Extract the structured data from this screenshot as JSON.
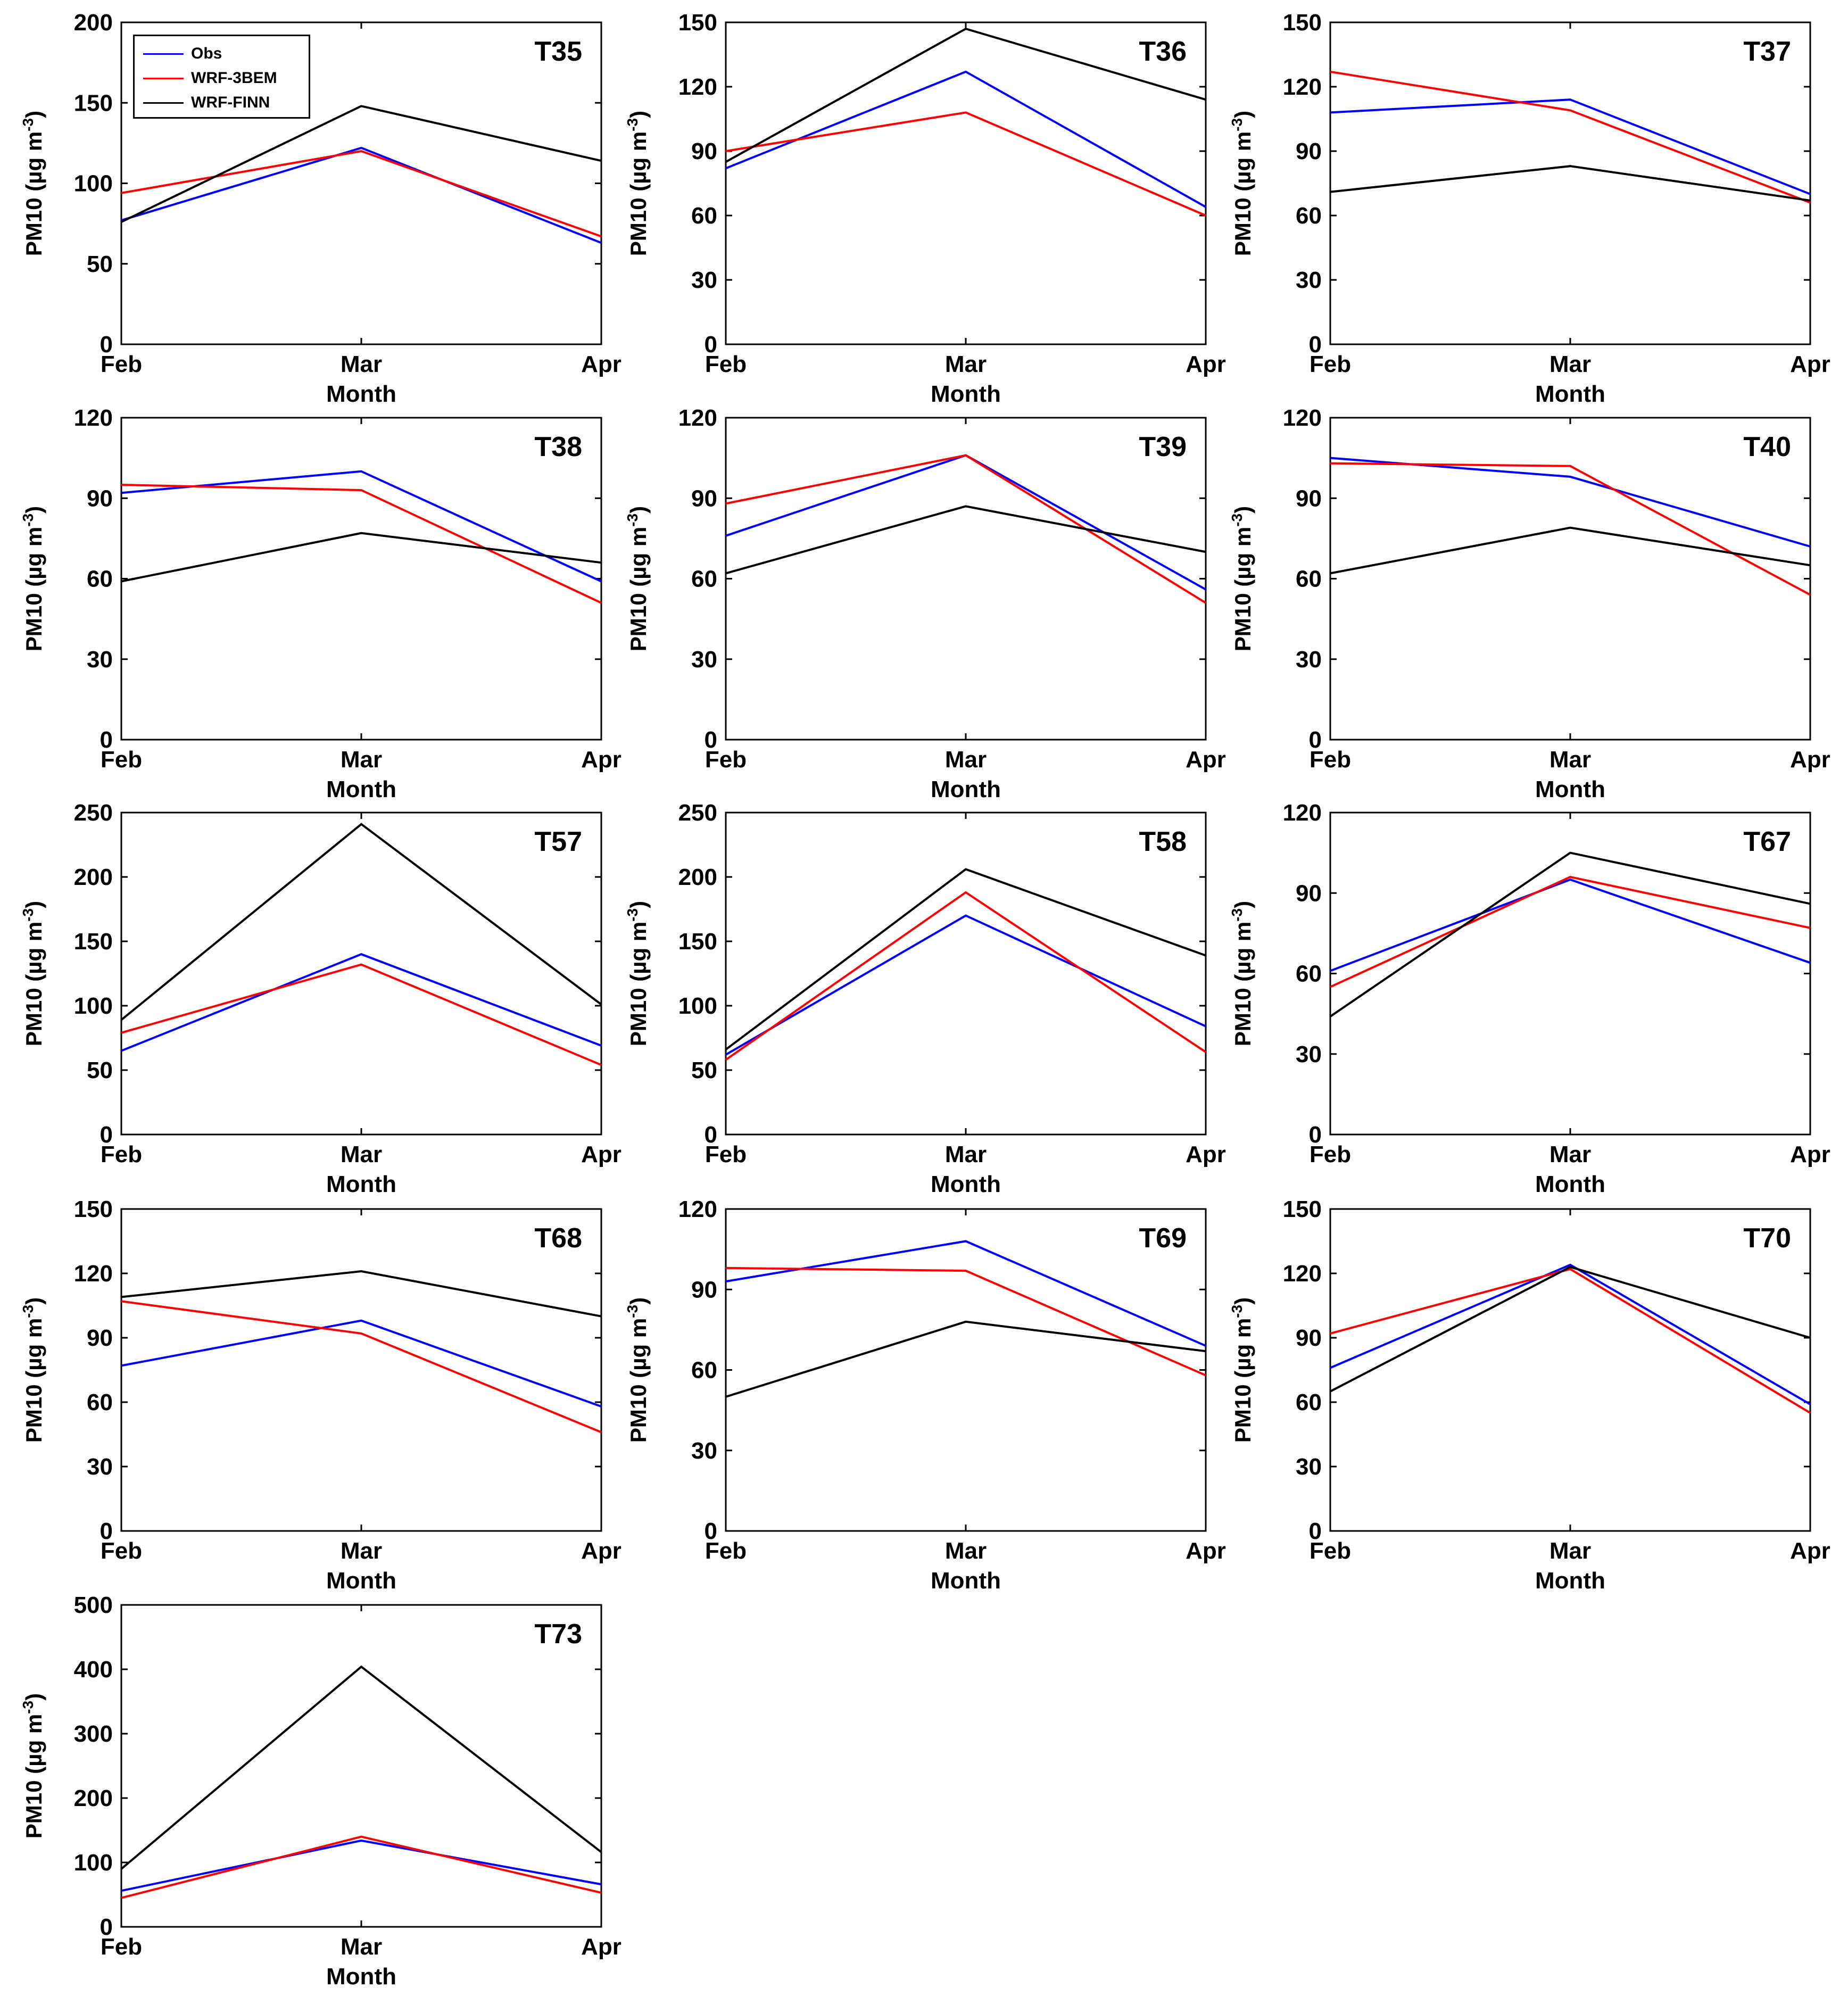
{
  "chart_data": {
    "type": "line",
    "layout": "small-multiples",
    "categories": [
      "Feb",
      "Mar",
      "Apr"
    ],
    "xlabel": "Month",
    "ylabel": "PM10 (µg m⁻³)",
    "legend": {
      "location": "top-left of first panel",
      "entries": [
        {
          "name": "Obs",
          "color": "#0000ff"
        },
        {
          "name": "WRF-3BEM",
          "color": "#ff0000"
        },
        {
          "name": "WRF-FINN",
          "color": "#000000"
        }
      ]
    },
    "panels": [
      {
        "title": "T35",
        "ylim": [
          0,
          200
        ],
        "yticks": [
          0,
          50,
          100,
          150,
          200
        ],
        "series": [
          {
            "name": "Obs",
            "values": [
              77,
              122,
              63
            ]
          },
          {
            "name": "WRF-3BEM",
            "values": [
              94,
              120,
              67
            ]
          },
          {
            "name": "WRF-FINN",
            "values": [
              76,
              148,
              114
            ]
          }
        ]
      },
      {
        "title": "T36",
        "ylim": [
          0,
          150
        ],
        "yticks": [
          0,
          30,
          60,
          90,
          120,
          150
        ],
        "series": [
          {
            "name": "Obs",
            "values": [
              82,
              127,
              64
            ]
          },
          {
            "name": "WRF-3BEM",
            "values": [
              90,
              108,
              60
            ]
          },
          {
            "name": "WRF-FINN",
            "values": [
              85,
              147,
              114
            ]
          }
        ]
      },
      {
        "title": "T37",
        "ylim": [
          0,
          150
        ],
        "yticks": [
          0,
          30,
          60,
          90,
          120,
          150
        ],
        "series": [
          {
            "name": "Obs",
            "values": [
              108,
              114,
              70
            ]
          },
          {
            "name": "WRF-3BEM",
            "values": [
              127,
              109,
              66
            ]
          },
          {
            "name": "WRF-FINN",
            "values": [
              71,
              83,
              67
            ]
          }
        ]
      },
      {
        "title": "T38",
        "ylim": [
          0,
          120
        ],
        "yticks": [
          0,
          30,
          60,
          90,
          120
        ],
        "series": [
          {
            "name": "Obs",
            "values": [
              92,
              100,
              59
            ]
          },
          {
            "name": "WRF-3BEM",
            "values": [
              95,
              93,
              51
            ]
          },
          {
            "name": "WRF-FINN",
            "values": [
              59,
              77,
              66
            ]
          }
        ]
      },
      {
        "title": "T39",
        "ylim": [
          0,
          120
        ],
        "yticks": [
          0,
          30,
          60,
          90,
          120
        ],
        "series": [
          {
            "name": "Obs",
            "values": [
              76,
              106,
              56
            ]
          },
          {
            "name": "WRF-3BEM",
            "values": [
              88,
              106,
              51
            ]
          },
          {
            "name": "WRF-FINN",
            "values": [
              62,
              87,
              70
            ]
          }
        ]
      },
      {
        "title": "T40",
        "ylim": [
          0,
          120
        ],
        "yticks": [
          0,
          30,
          60,
          90,
          120
        ],
        "series": [
          {
            "name": "Obs",
            "values": [
              105,
              98,
              72
            ]
          },
          {
            "name": "WRF-3BEM",
            "values": [
              103,
              102,
              54
            ]
          },
          {
            "name": "WRF-FINN",
            "values": [
              62,
              79,
              65
            ]
          }
        ]
      },
      {
        "title": "T57",
        "ylim": [
          0,
          250
        ],
        "yticks": [
          0,
          50,
          100,
          150,
          200,
          250
        ],
        "series": [
          {
            "name": "Obs",
            "values": [
              65,
              140,
              69
            ]
          },
          {
            "name": "WRF-3BEM",
            "values": [
              79,
              132,
              54
            ]
          },
          {
            "name": "WRF-FINN",
            "values": [
              89,
              241,
              101
            ]
          }
        ]
      },
      {
        "title": "T58",
        "ylim": [
          0,
          250
        ],
        "yticks": [
          0,
          50,
          100,
          150,
          200,
          250
        ],
        "series": [
          {
            "name": "Obs",
            "values": [
              62,
              170,
              84
            ]
          },
          {
            "name": "WRF-3BEM",
            "values": [
              58,
              188,
              64
            ]
          },
          {
            "name": "WRF-FINN",
            "values": [
              66,
              206,
              139
            ]
          }
        ]
      },
      {
        "title": "T67",
        "ylim": [
          0,
          120
        ],
        "yticks": [
          0,
          30,
          60,
          90,
          120
        ],
        "series": [
          {
            "name": "Obs",
            "values": [
              61,
              95,
              64
            ]
          },
          {
            "name": "WRF-3BEM",
            "values": [
              55,
              96,
              77
            ]
          },
          {
            "name": "WRF-FINN",
            "values": [
              44,
              105,
              86
            ]
          }
        ]
      },
      {
        "title": "T68",
        "ylim": [
          0,
          150
        ],
        "yticks": [
          0,
          30,
          60,
          90,
          120,
          150
        ],
        "series": [
          {
            "name": "Obs",
            "values": [
              77,
              98,
              58
            ]
          },
          {
            "name": "WRF-3BEM",
            "values": [
              107,
              92,
              46
            ]
          },
          {
            "name": "WRF-FINN",
            "values": [
              109,
              121,
              100
            ]
          }
        ]
      },
      {
        "title": "T69",
        "ylim": [
          0,
          120
        ],
        "yticks": [
          0,
          30,
          60,
          90,
          120
        ],
        "series": [
          {
            "name": "Obs",
            "values": [
              93,
              108,
              69
            ]
          },
          {
            "name": "WRF-3BEM",
            "values": [
              98,
              97,
              58
            ]
          },
          {
            "name": "WRF-FINN",
            "values": [
              50,
              78,
              67
            ]
          }
        ]
      },
      {
        "title": "T70",
        "ylim": [
          0,
          150
        ],
        "yticks": [
          0,
          30,
          60,
          90,
          120,
          150
        ],
        "series": [
          {
            "name": "Obs",
            "values": [
              76,
              124,
              59
            ]
          },
          {
            "name": "WRF-3BEM",
            "values": [
              92,
              122,
              55
            ]
          },
          {
            "name": "WRF-FINN",
            "values": [
              65,
              123,
              90
            ]
          }
        ]
      },
      {
        "title": "T73",
        "ylim": [
          0,
          500
        ],
        "yticks": [
          0,
          100,
          200,
          300,
          400,
          500
        ],
        "series": [
          {
            "name": "Obs",
            "values": [
              56,
              134,
              66
            ]
          },
          {
            "name": "WRF-3BEM",
            "values": [
              45,
              140,
              53
            ]
          },
          {
            "name": "WRF-FINN",
            "values": [
              90,
              404,
              116
            ]
          }
        ]
      }
    ]
  }
}
